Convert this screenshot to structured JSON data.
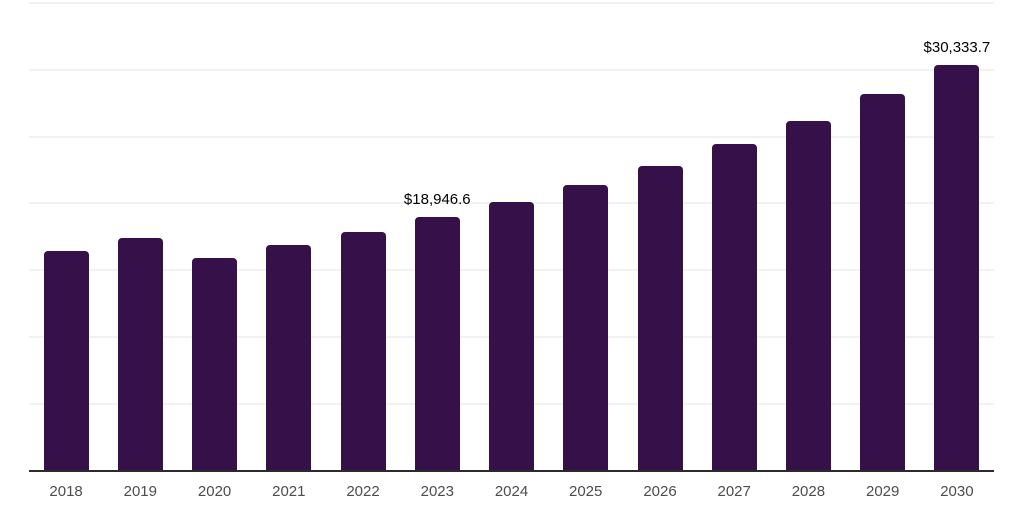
{
  "chart_data": {
    "type": "bar",
    "title": "",
    "xlabel": "",
    "ylabel": "",
    "categories": [
      "2018",
      "2019",
      "2020",
      "2021",
      "2022",
      "2023",
      "2024",
      "2025",
      "2026",
      "2027",
      "2028",
      "2029",
      "2030"
    ],
    "values": [
      16450,
      17420,
      15950,
      16880,
      17870,
      18946.6,
      20120,
      21390,
      22780,
      24480,
      26140,
      28200,
      30333.7
    ],
    "data_labels": [
      "",
      "",
      "",
      "",
      "",
      "$18,946.6",
      "",
      "",
      "",
      "",
      "",
      "",
      "$30,333.7"
    ],
    "ylim": [
      0,
      35000
    ],
    "grid_step": 5000,
    "grid": true,
    "legend": false,
    "y_axis_tick_labels_visible": false,
    "colors": {
      "bar": "#361149",
      "gridline": "#f2f2f2",
      "axis_line": "#2b2b2b",
      "x_tick_label": "#4d4d4d",
      "data_label": "#000000",
      "background": "#ffffff"
    }
  }
}
